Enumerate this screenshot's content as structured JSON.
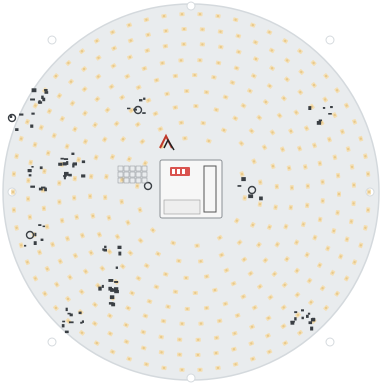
{
  "photo": {
    "subject": "round-led-pcb",
    "colors": {
      "background": "#ffffff",
      "board": "#e9ecee",
      "board_edge": "#d4d9dd",
      "led": "#f4dfb4",
      "led_core": "#e8c98b",
      "component": "#3a3f44",
      "module": "#f7f7f7",
      "module_edge": "#8a8f94",
      "dip_switch": "#d9534f",
      "hole": "#ffffff"
    }
  }
}
